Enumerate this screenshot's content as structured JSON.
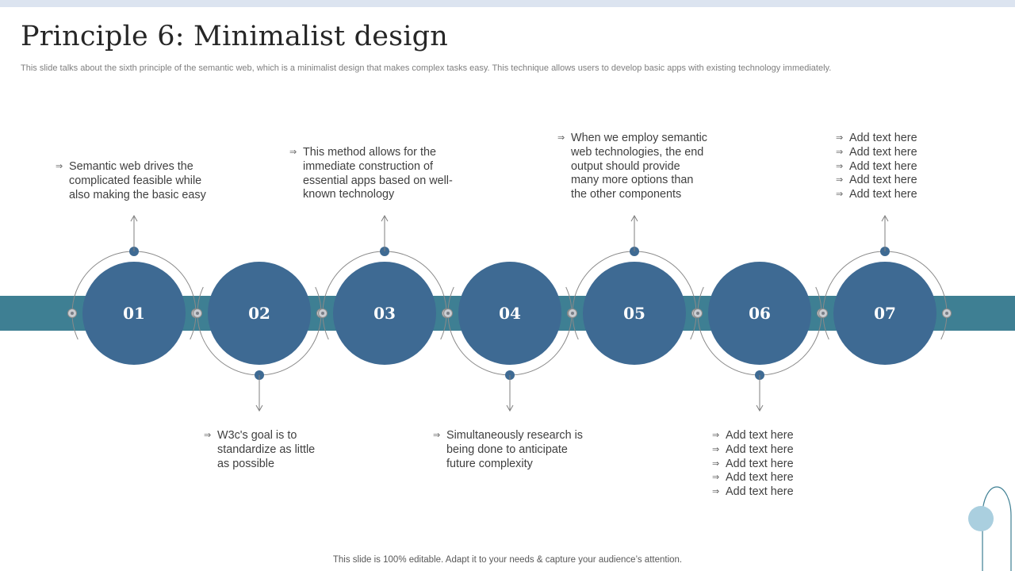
{
  "slide": {
    "title": "Principle 6: Minimalist design",
    "subtitle": "This slide talks about the sixth principle of the semantic web, which is a minimalist design that makes complex tasks easy. This technique allows users to develop basic apps with existing technology immediately.",
    "footer": "This slide is 100% editable. Adapt it to your needs & capture your audience’s attention."
  },
  "colors": {
    "band": "#3e7f93",
    "circle": "#3e6a93",
    "ring": "#8a8a8a",
    "dot": "#3e6a93",
    "accent_circle": "#aacfdf"
  },
  "bullet_icon": "double-arrow-right-icon",
  "steps": [
    {
      "num": "01",
      "text": [
        "Semantic web drives the",
        "complicated feasible while",
        "also making the basic easy"
      ]
    },
    {
      "num": "02",
      "text": [
        "W3c's goal is to",
        "standardize as little",
        "as possible"
      ]
    },
    {
      "num": "03",
      "text": [
        "This method allows for the",
        "immediate construction of",
        "essential apps based on well-",
        "known technology"
      ]
    },
    {
      "num": "04",
      "text": [
        "Simultaneously research is",
        "being done to anticipate",
        "future complexity"
      ]
    },
    {
      "num": "05",
      "text": [
        "When we employ semantic",
        "web technologies, the end",
        "output should provide",
        "many more options than",
        "the other components"
      ]
    },
    {
      "num": "06",
      "text": [
        "Add text here",
        "Add text here",
        "Add text here",
        "Add text here",
        "Add text here"
      ]
    },
    {
      "num": "07",
      "text": [
        "Add text here",
        "Add text here",
        "Add text here",
        "Add text here",
        "Add text here"
      ]
    }
  ]
}
